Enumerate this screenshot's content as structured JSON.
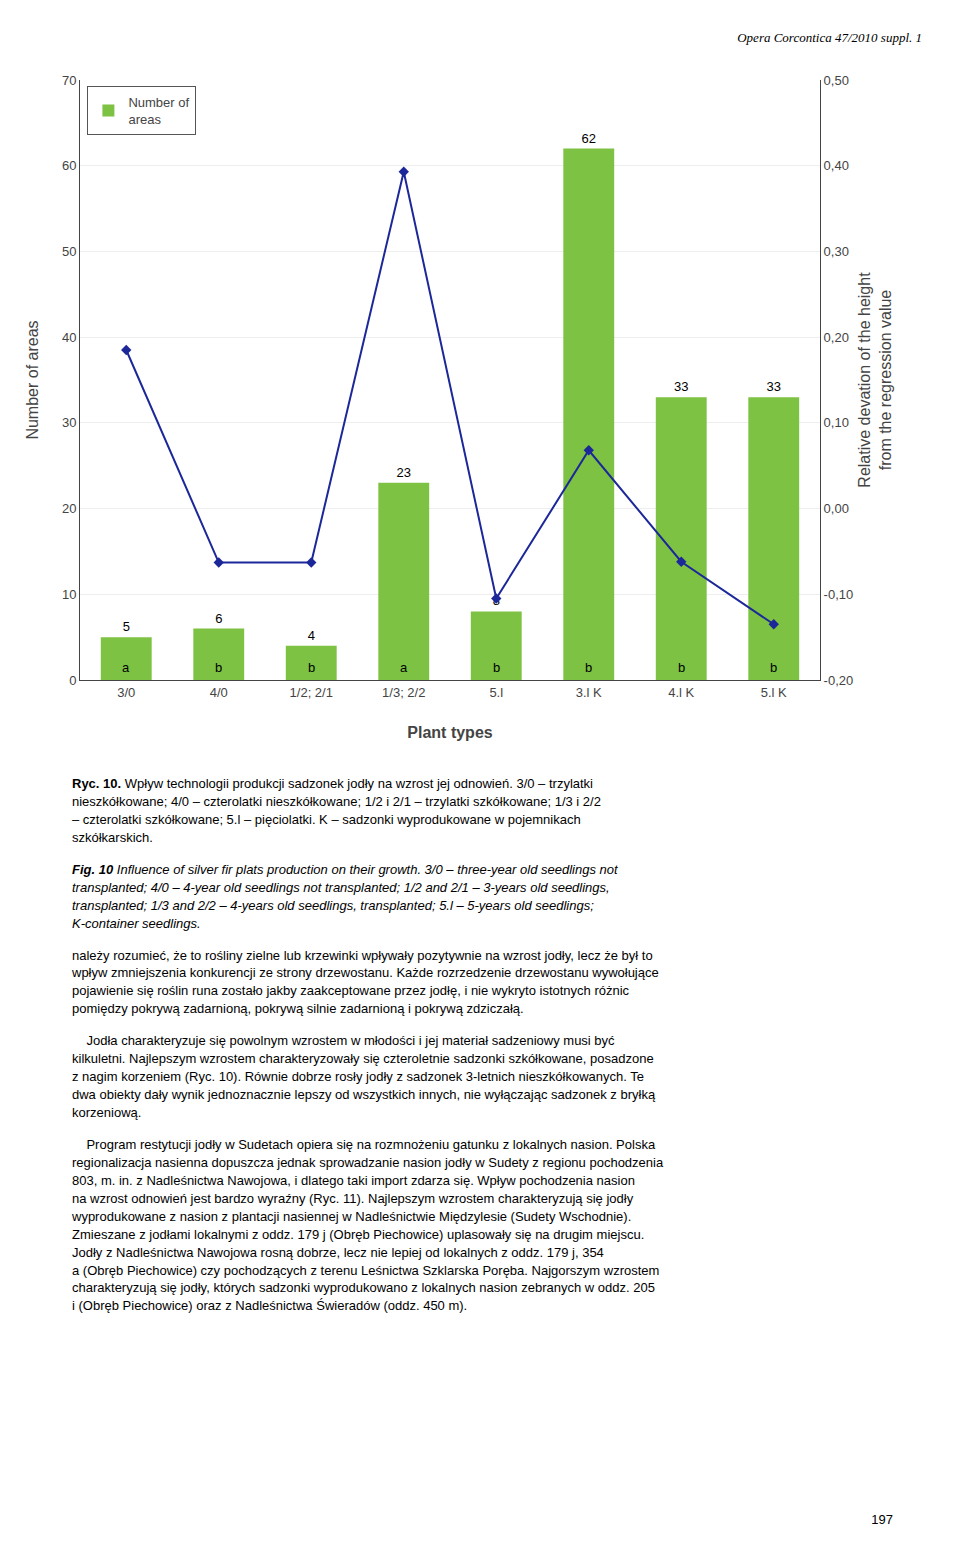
{
  "chart_data": {
    "type": "bar",
    "categories": [
      "3/0",
      "4/0",
      "1/2; 2/1",
      "1/3; 2/2",
      "5.l",
      "3.l K",
      "4.l K",
      "5.l K"
    ],
    "annotations": [
      "a",
      "b",
      "b",
      "a",
      "b",
      "b",
      "b",
      "b"
    ],
    "series": [
      {
        "name": "Number of\nareas",
        "type": "bar",
        "color": "#7DC243",
        "data_labels": true,
        "values": [
          5,
          6,
          4,
          23,
          8,
          62,
          33,
          33
        ]
      },
      {
        "type": "line",
        "axis": "y2",
        "color": "#1C2899",
        "marker": "diamond",
        "values": [
          0.185,
          -0.063,
          -0.063,
          0.393,
          -0.105,
          0.068,
          -0.062,
          -0.135
        ]
      }
    ],
    "x_label": "Plant types",
    "y_label": "Number of areas",
    "y2_label": "Relative devation of the height\nfrom the regression value",
    "ylim": [
      0,
      70
    ],
    "yticks": [
      0,
      10,
      20,
      30,
      40,
      50,
      60,
      70
    ],
    "y2lim": [
      -0.2,
      0.5
    ],
    "y2ticks": [
      {
        "value": -0.2,
        "label": "-0,20"
      },
      {
        "value": -0.1,
        "label": "-0,10"
      },
      {
        "value": 0.0,
        "label": "0,00"
      },
      {
        "value": 0.1,
        "label": "0,10"
      },
      {
        "value": 0.2,
        "label": "0,20"
      },
      {
        "value": 0.3,
        "label": "0,30"
      },
      {
        "value": 0.4,
        "label": "0,40"
      },
      {
        "value": 0.5,
        "label": "0,50"
      }
    ],
    "grid": true,
    "legend": "upper left"
  },
  "header": "Opera Corcontica 47/2010 suppl. 1",
  "caption_pl": {
    "bold": "Ryc. 10.",
    "text": " Wpływ technologii produkcji sadzonek jodły na wzrost jej odnowień. 3/0 – trzylatki\nnieszkółkowane; 4/0 – czterolatki nieszkółkowane; 1/2 i 2/1 – trzylatki szkółkowane; 1/3 i 2/2\n– czterolatki szkółkowane; 5.l – pięciolatki. K – sadzonki wyprodukowane w pojemnikach\nszkółkarskich."
  },
  "caption_en": {
    "bold": "Fig. 10",
    "text": " Influence of silver fir plats production on their growth. 3/0 – three-year old seedlings not\ntransplanted; 4/0 – 4-year old seedlings not transplanted; 1/2 and 2/1 – 3-years old seedlings,\ntransplanted; 1/3 and 2/2 – 4-years old seedlings, transplanted; 5.l – 5-years old seedlings;\nK-container seedlings."
  },
  "body": [
    "należy rozumieć, że to rośliny zielne lub krzewinki wpływały pozytywnie na wzrost jodły, lecz że był to\nwpływ zmniejszenia konkurencji ze strony drzewostanu. Każde rozrzedzenie drzewostanu wywołujące\npojawienie się roślin runa zostało jakby zaakceptowane przez jodłę, i nie wykryto istotnych różnic\npomiędzy pokrywą zadarnioną, pokrywą silnie zadarnioną i pokrywą zdziczałą.",
    "    Jodła charakteryzuje się powolnym wzrostem w młodości i jej materiał sadzeniowy musi być\nkilkuletni. Najlepszym wzrostem charakteryzowały się czteroletnie sadzonki szkółkowane, posadzone\nz nagim korzeniem (Ryc. 10). Równie dobrze rosły jodły z sadzonek 3-letnich nieszkółkowanych. Te\ndwa obiekty dały wynik jednoznacznie lepszy od wszystkich innych, nie wyłączając sadzonek z bryłką\nkorzeniową.",
    "    Program restytucji jodły w Sudetach opiera się na rozmnożeniu gatunku z lokalnych nasion. Polska\nregionalizacja nasienna dopuszcza jednak sprowadzanie nasion jodły w Sudety z regionu pochodzenia\n803, m. in. z Nadleśnictwa Nawojowa, i dlatego taki import zdarza się. Wpływ pochodzenia nasion\nna wzrost odnowień jest bardzo wyraźny (Ryc. 11). Najlepszym wzrostem charakteryzują się jodły\nwyprodukowane z nasion z plantacji nasiennej w Nadleśnictwie Międzylesie (Sudety Wschodnie).\nZmieszane z jodłami lokalnymi z oddz. 179 j (Obręb Piechowice) uplasowały się na drugim miejscu.\nJodły z Nadleśnictwa Nawojowa rosną dobrze, lecz nie lepiej od lokalnych z oddz. 179 j, 354\na (Obręb Piechowice) czy pochodzących z terenu Leśnictwa Szklarska Poręba. Najgorszym wzrostem\ncharakteryzują się jodły, których sadzonki wyprodukowano z lokalnych nasion zebranych w oddz. 205\ni (Obręb Piechowice) oraz z Nadleśnictwa Świeradów (oddz. 450 m)."
  ],
  "page_number": "197"
}
